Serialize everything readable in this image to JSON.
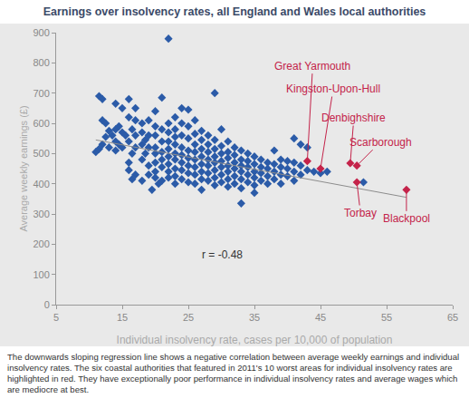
{
  "chart_data": {
    "type": "scatter",
    "title": "Earnings over insolvency rates, all England and Wales local authorities",
    "x_label": "Individual insolvency rate, cases per 10,000 of population",
    "y_label": "Average weekly earnings (£)",
    "caption": "The downwards sloping regression line shows a negative correlation between average weekly earnings and individual insolvency rates. The six coastal authorities that featured in 2011's 10 worst areas for individual insolvency rates are highlighted in red.  They have exceptionally poor performance in individual insolvency rates and average wages which are mediocre at best.",
    "annotations": [
      "r = -0.48"
    ],
    "xlim": [
      5,
      65
    ],
    "xticks": [
      5,
      15,
      25,
      35,
      45,
      55,
      65
    ],
    "ylim": [
      0,
      900
    ],
    "yticks": [
      0,
      100,
      200,
      300,
      400,
      500,
      600,
      700,
      800,
      900
    ],
    "grid": false,
    "series": [
      {
        "type": "scatter",
        "marker": "diamond",
        "color": "#2b5ba8",
        "x": [
          11,
          11.5,
          12,
          12,
          12.5,
          12,
          13,
          11.5,
          13,
          13.5,
          12.5,
          14,
          14,
          14,
          14.5,
          15,
          14.5,
          15,
          14,
          15,
          15.5,
          16,
          16,
          16,
          16.5,
          16,
          17,
          17,
          16.5,
          17,
          17,
          16,
          17,
          16.5,
          18,
          18,
          18,
          18.5,
          18,
          19,
          19,
          19,
          18,
          19,
          18.5,
          19,
          20,
          20,
          20,
          20,
          20,
          20,
          20,
          20,
          21,
          21,
          21,
          21,
          21,
          21,
          21,
          20.5,
          19.5,
          22,
          22,
          22,
          22,
          22,
          22,
          22,
          22,
          22,
          23,
          23,
          23,
          23,
          23,
          23,
          23,
          23,
          23,
          24,
          24,
          24,
          24,
          24,
          24,
          24,
          24,
          25,
          25,
          25,
          25,
          25,
          25,
          25,
          25,
          26,
          26,
          26,
          26,
          26,
          26,
          26,
          26,
          27,
          27,
          27,
          27,
          27,
          27,
          27,
          27,
          28,
          28,
          28,
          28,
          28,
          28,
          28,
          29,
          29,
          29,
          29,
          29,
          29,
          29,
          29,
          30,
          30,
          30,
          30,
          30,
          30,
          30,
          31,
          31,
          31,
          31,
          31,
          31,
          31,
          32,
          32,
          32,
          32,
          32,
          32,
          33,
          33,
          33,
          33,
          33,
          33,
          33,
          34,
          34,
          34,
          34,
          34,
          35,
          35,
          35,
          35,
          35,
          35,
          36,
          36,
          36,
          36,
          37,
          37,
          37,
          37,
          38,
          38,
          38,
          38,
          39,
          39,
          39,
          39,
          40,
          40,
          40,
          41,
          41,
          41,
          41,
          42,
          42,
          42,
          43,
          43,
          44,
          45,
          46,
          51.5
        ],
        "values": [
          505,
          690,
          680,
          610,
          555,
          530,
          520,
          515,
          575,
          560,
          600,
          665,
          580,
          540,
          590,
          650,
          530,
          520,
          510,
          570,
          560,
          680,
          620,
          540,
          500,
          470,
          610,
          560,
          580,
          520,
          650,
          445,
          430,
          415,
          600,
          570,
          530,
          500,
          480,
          610,
          560,
          460,
          410,
          430,
          545,
          520,
          640,
          590,
          560,
          520,
          500,
          470,
          440,
          420,
          685,
          580,
          540,
          505,
          480,
          455,
          410,
          400,
          380,
          880,
          600,
          570,
          540,
          515,
          490,
          465,
          440,
          420,
          620,
          580,
          555,
          530,
          500,
          480,
          450,
          425,
          400,
          650,
          600,
          560,
          520,
          495,
          470,
          445,
          415,
          645,
          590,
          550,
          510,
          485,
          460,
          435,
          405,
          610,
          565,
          530,
          505,
          480,
          455,
          430,
          400,
          575,
          545,
          515,
          490,
          465,
          440,
          415,
          380,
          560,
          530,
          505,
          480,
          460,
          435,
          410,
          700,
          545,
          515,
          490,
          470,
          445,
          420,
          395,
          580,
          525,
          500,
          475,
          455,
          430,
          405,
          540,
          505,
          485,
          460,
          440,
          415,
          390,
          520,
          495,
          470,
          450,
          425,
          400,
          335,
          510,
          480,
          460,
          440,
          415,
          385,
          500,
          475,
          455,
          430,
          405,
          490,
          465,
          440,
          420,
          395,
          370,
          480,
          455,
          435,
          410,
          470,
          450,
          425,
          400,
          510,
          465,
          440,
          415,
          480,
          455,
          430,
          400,
          475,
          450,
          425,
          550,
          470,
          440,
          410,
          530,
          460,
          430,
          520,
          445,
          440,
          435,
          440,
          405
        ]
      },
      {
        "type": "scatter",
        "marker": "diamond",
        "color": "#c4234a",
        "x": [
          43,
          45,
          49.5,
          50.5,
          50.5,
          58
        ],
        "values": [
          475,
          450,
          468,
          460,
          405,
          380
        ],
        "labels": [
          "Great Yarmouth",
          "Kingston-Upon-Hull",
          "Denbighshire",
          "Scarborough",
          "Torbay",
          "Blackpool"
        ]
      },
      {
        "type": "line",
        "color": "#8c8c8c",
        "x": [
          11,
          58
        ],
        "values": [
          545,
          355
        ]
      }
    ]
  }
}
